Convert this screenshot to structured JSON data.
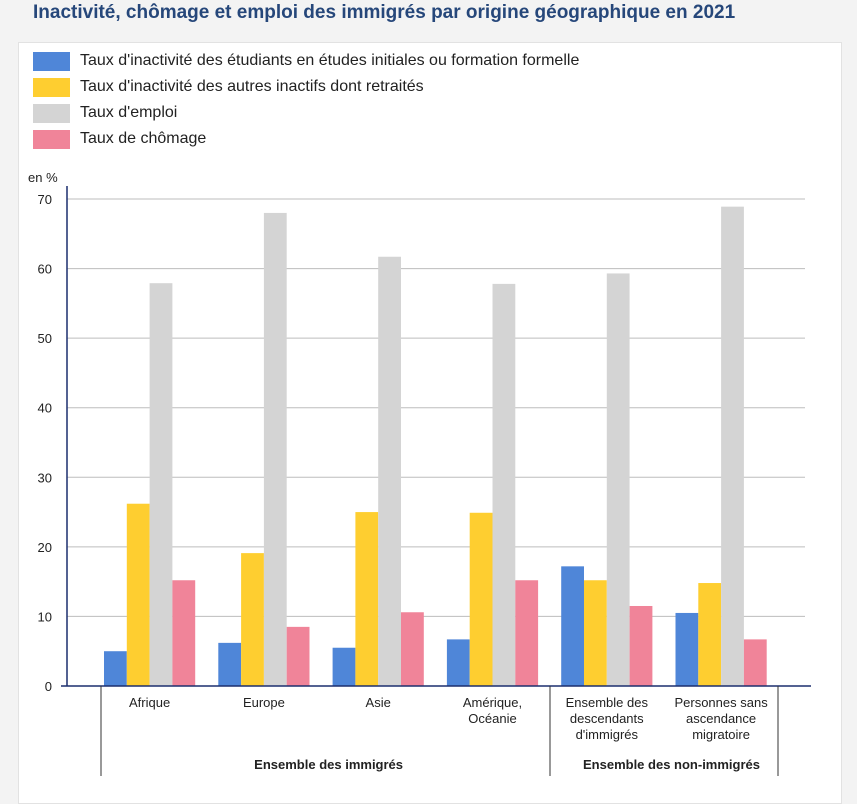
{
  "title": "Inactivité, chômage et emploi des immigrés par origine géographique en 2021",
  "unit_label": "en %",
  "chart_data": {
    "type": "bar",
    "title": "Inactivité, chômage et emploi des immigrés par origine géographique en 2021",
    "ylabel": "en %",
    "ylim": [
      0,
      70
    ],
    "yticks": [
      0,
      10,
      20,
      30,
      40,
      50,
      60,
      70
    ],
    "grid": true,
    "legend_position": "top-left",
    "categories": [
      [
        "Afrique"
      ],
      [
        "Europe"
      ],
      [
        "Asie"
      ],
      [
        "Amérique,",
        "Océanie"
      ],
      [
        "Ensemble des",
        "descendants",
        "d'immigrés"
      ],
      [
        "Personnes sans",
        "ascendance",
        "migratoire"
      ]
    ],
    "groups": [
      {
        "label": "Ensemble des immigrés",
        "categories": [
          0,
          1,
          2,
          3
        ]
      },
      {
        "label": "Ensemble des non-immigrés",
        "categories": [
          4,
          5
        ]
      }
    ],
    "series": [
      {
        "name": "Taux d'inactivité des étudiants en études initiales ou formation formelle",
        "color": "#4f86d8",
        "values": [
          5.0,
          6.2,
          5.5,
          6.7,
          17.2,
          10.5
        ]
      },
      {
        "name": "Taux d'inactivité des autres inactifs dont retraités",
        "color": "#fece30",
        "values": [
          26.2,
          19.1,
          25.0,
          24.9,
          15.2,
          14.8
        ]
      },
      {
        "name": "Taux d'emploi",
        "color": "#d4d4d4",
        "values": [
          57.9,
          68.0,
          61.7,
          57.8,
          59.3,
          68.9
        ]
      },
      {
        "name": "Taux de chômage",
        "color": "#f08499",
        "values": [
          15.2,
          8.5,
          10.6,
          15.2,
          11.5,
          6.7
        ]
      }
    ]
  }
}
